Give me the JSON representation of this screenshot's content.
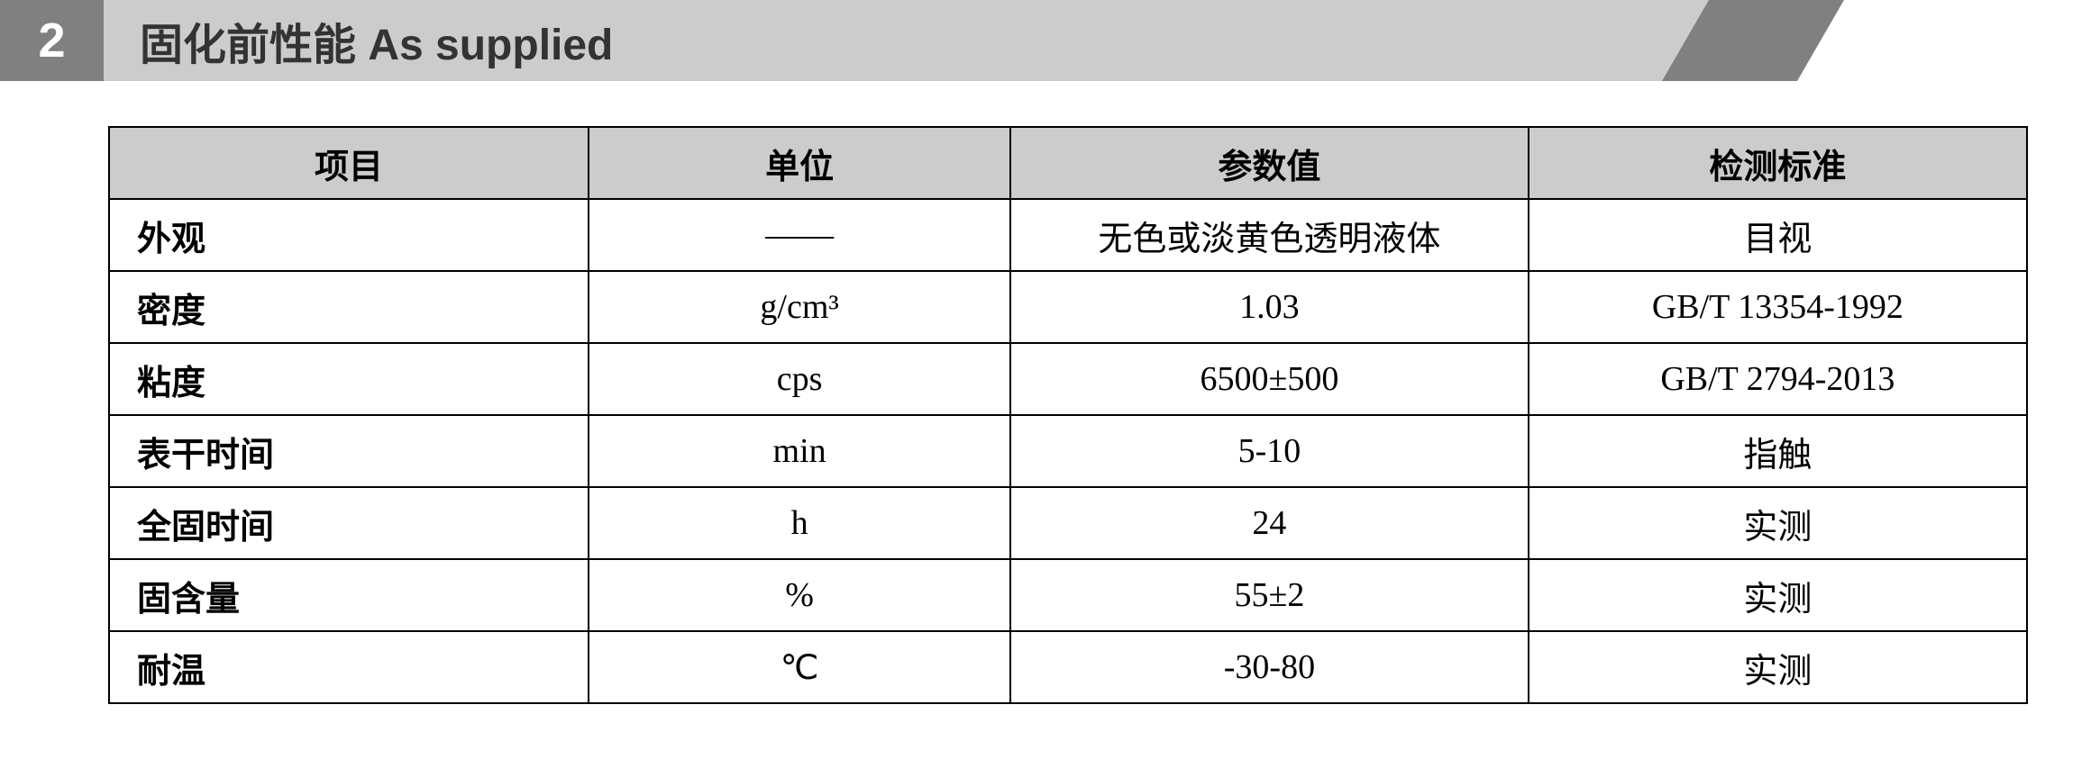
{
  "section": {
    "number": "2",
    "title": "固化前性能  As supplied"
  },
  "table": {
    "columns": [
      "项目",
      "单位",
      "参数值",
      "检测标准"
    ],
    "rows": [
      [
        "外观",
        "——",
        "无色或淡黄色透明液体",
        "目视"
      ],
      [
        "密度",
        "g/cm³",
        "1.03",
        "GB/T 13354-1992"
      ],
      [
        "粘度",
        "cps",
        "6500±500",
        "GB/T 2794-2013"
      ],
      [
        "表干时间",
        "min",
        "5-10",
        "指触"
      ],
      [
        "全固时间",
        "h",
        "24",
        "实测"
      ],
      [
        "固含量",
        "%",
        "55±2",
        "实测"
      ],
      [
        "耐温",
        "℃",
        "-30-80",
        "实测"
      ]
    ],
    "header_bg_color": "#cccccc",
    "border_color": "#000000",
    "body_bg_color": "#ffffff",
    "font_size_header": 38,
    "font_size_body": 38,
    "column_widths": [
      "25%",
      "22%",
      "27%",
      "26%"
    ],
    "first_col_align": "left",
    "other_col_align": "center"
  },
  "colors": {
    "section_number_bg": "#808080",
    "section_title_bg": "#cccccc",
    "section_accent": "#808080",
    "page_bg": "#ffffff"
  }
}
